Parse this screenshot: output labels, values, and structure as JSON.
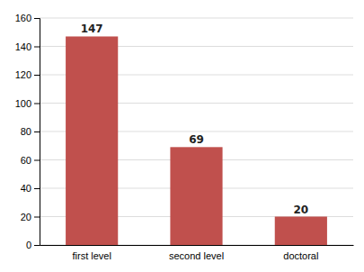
{
  "chart_data": {
    "type": "bar",
    "categories": [
      "first level",
      "second level",
      "doctoral"
    ],
    "values": [
      147,
      69,
      20
    ],
    "color": "#c0504d",
    "ylim": [
      0,
      160
    ],
    "yticks": [
      0,
      20,
      40,
      60,
      80,
      100,
      120,
      140,
      160
    ],
    "grid": true,
    "data_labels": true
  }
}
